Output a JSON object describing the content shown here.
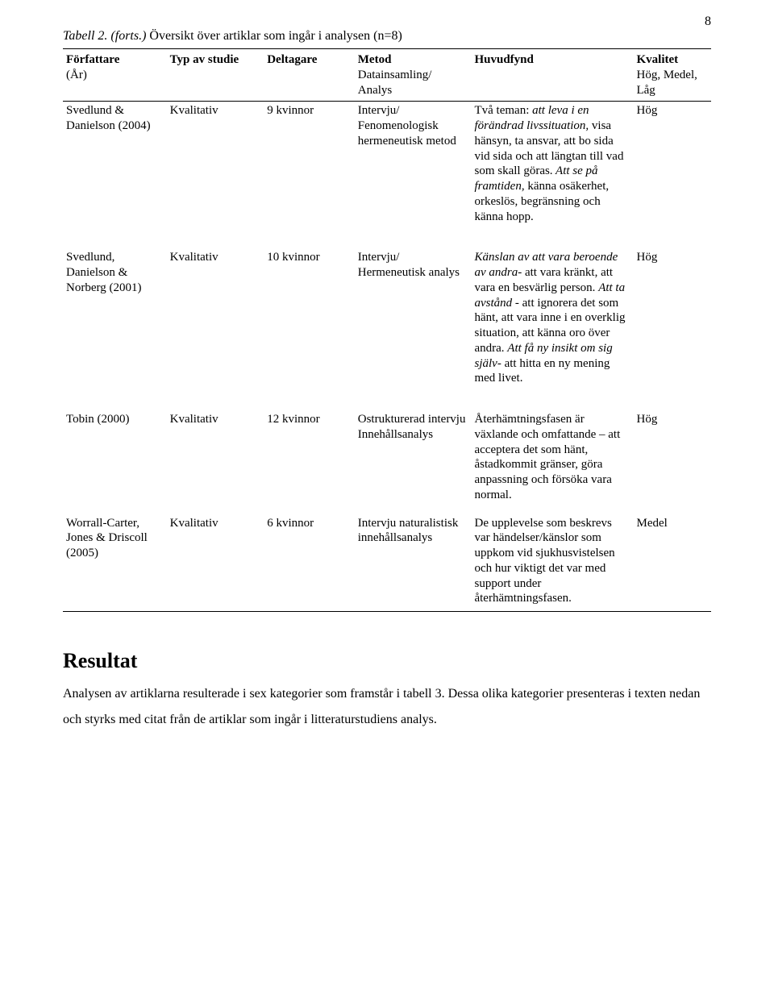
{
  "page": {
    "number": "8",
    "background_color": "#ffffff",
    "text_color": "#000000",
    "font_family": "Times New Roman",
    "body_fontsize_pt": 12,
    "heading_fontsize_pt": 18
  },
  "table": {
    "caption_prefix": "Tabell 2. (forts.) ",
    "caption_rest": "Översikt över artiklar som ingår i analysen (n=8)",
    "columns": [
      {
        "label_line1": "Författare",
        "label_line2": "(År)",
        "width_pct": 16
      },
      {
        "label_line1": "Typ av studie",
        "label_line2": "",
        "width_pct": 15
      },
      {
        "label_line1": "Deltagare",
        "label_line2": "",
        "width_pct": 14
      },
      {
        "label_line1": "Metod",
        "label_line2": "Datainsamling/ Analys",
        "width_pct": 18
      },
      {
        "label_line1": "Huvudfynd",
        "label_line2": "",
        "width_pct": 25
      },
      {
        "label_line1": "Kvalitet",
        "label_line2": "Hög, Medel, Låg",
        "width_pct": 12
      }
    ],
    "rows": [
      {
        "author": "Svedlund & Danielson (2004)",
        "type": "Kvalitativ",
        "participants": "9 kvinnor",
        "method": "Intervju/ Fenomenologisk hermeneutisk metod",
        "findings_parts": [
          {
            "text": "Två teman: ",
            "italic": false
          },
          {
            "text": "att leva i en förändrad livssituation,",
            "italic": true
          },
          {
            "text": " visa hänsyn, ta ansvar, att bo sida vid sida och att längtan till vad som skall göras.",
            "italic": false
          },
          {
            "text": " Att se på framtiden",
            "italic": true
          },
          {
            "text": ", känna osäkerhet, orkeslös, begränsning och känna hopp.",
            "italic": false
          }
        ],
        "quality": "Hög"
      },
      {
        "author": "Svedlund, Danielson & Norberg (2001)",
        "type": "Kvalitativ",
        "participants": "10 kvinnor",
        "method": "Intervju/ Hermeneutisk analys",
        "findings_parts": [
          {
            "text": "Känslan av att vara beroende av andra",
            "italic": true
          },
          {
            "text": "- att vara kränkt, att vara en besvärlig person. ",
            "italic": false
          },
          {
            "text": "Att ta avstånd",
            "italic": true
          },
          {
            "text": " - att ignorera det som hänt, att vara  inne i en overklig situation, att känna oro över andra. ",
            "italic": false
          },
          {
            "text": "Att få ny insikt om sig själv",
            "italic": true
          },
          {
            "text": "- att hitta en ny mening med livet.",
            "italic": false
          }
        ],
        "quality": "Hög"
      },
      {
        "author": "Tobin (2000)",
        "type": "Kvalitativ",
        "participants": "12 kvinnor",
        "method": "Ostrukturerad intervju Innehållsanalys",
        "findings_parts": [
          {
            "text": "Återhämtningsfasen är växlande och omfattande – att acceptera det som hänt, åstadkommit gränser, göra anpassning och försöka vara normal.",
            "italic": false
          }
        ],
        "quality": "Hög"
      },
      {
        "author": "Worrall-Carter, Jones & Driscoll (2005)",
        "type": "Kvalitativ",
        "participants": "6 kvinnor",
        "method": "Intervju naturalistisk innehållsanalys",
        "findings_parts": [
          {
            "text": "De upplevelse som beskrevs var händelser/känslor som uppkom vid sjukhusvistelsen och hur viktigt det var med support under återhämtningsfasen.",
            "italic": false
          }
        ],
        "quality": "Medel"
      }
    ]
  },
  "resultat": {
    "heading": "Resultat",
    "paragraph": "Analysen av artiklarna resulterade i sex kategorier som framstår i tabell 3. Dessa olika kategorier presenteras i texten nedan och styrks med citat från de artiklar som ingår i litteraturstudiens analys."
  }
}
